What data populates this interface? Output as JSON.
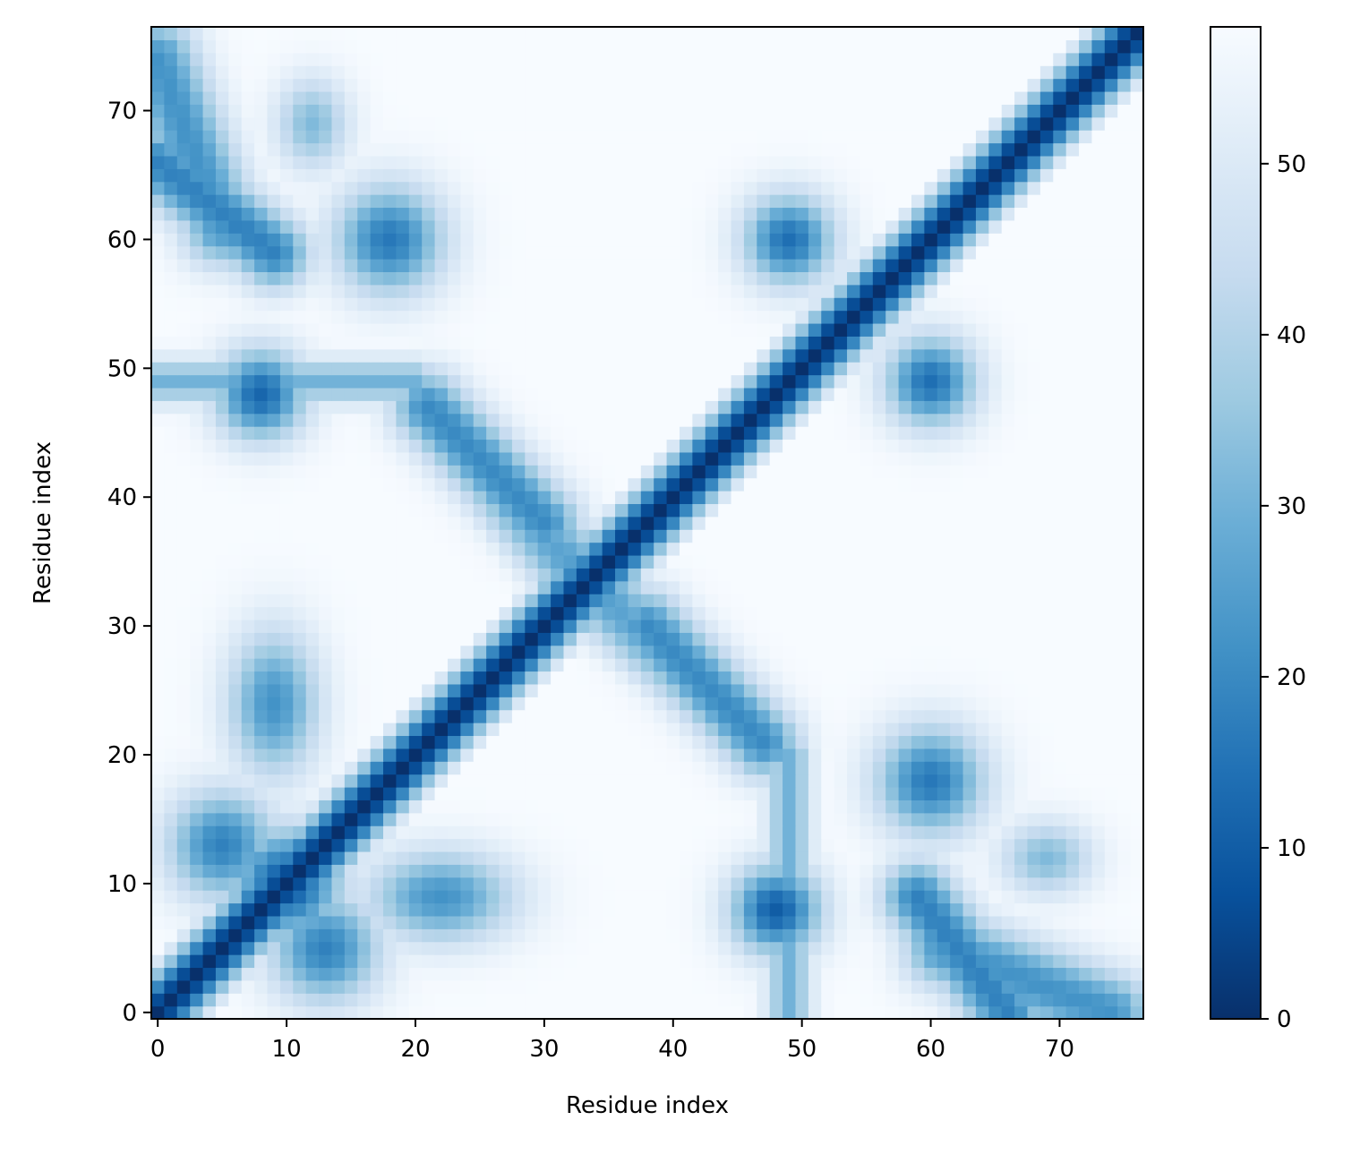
{
  "chart_data": {
    "type": "heatmap",
    "title": "",
    "xlabel": "Residue index",
    "ylabel": "Residue index",
    "n": 77,
    "xlim": [
      -0.5,
      76.5
    ],
    "ylim": [
      -0.5,
      76.5
    ],
    "x_ticks": [
      0,
      10,
      20,
      30,
      40,
      50,
      60,
      70
    ],
    "y_ticks": [
      0,
      10,
      20,
      30,
      40,
      50,
      60,
      70
    ],
    "colormap": "Blues_r",
    "colormap_stops": [
      "#08306b",
      "#08519c",
      "#2171b5",
      "#4292c6",
      "#6baed6",
      "#9ecae1",
      "#c6dbef",
      "#deebf7",
      "#f7fbff"
    ],
    "colorbar": {
      "range": [
        0,
        58
      ],
      "ticks": [
        0,
        10,
        20,
        30,
        40,
        50
      ]
    },
    "value_model": {
      "background": 58,
      "diagonal_width": 2.6,
      "anti_diagonal": {
        "center": 33.5,
        "level": 24,
        "width": 2.2,
        "extent": 12
      },
      "features": [
        {
          "x": 10,
          "y": 10,
          "value": 8,
          "sx": 3.0,
          "sy": 3.0
        },
        {
          "x": 5,
          "y": 13,
          "value": 18,
          "sx": 3.0,
          "sy": 3.0
        },
        {
          "x": 9,
          "y": 24,
          "value": 22,
          "sx": 2.5,
          "sy": 4.0
        },
        {
          "x": 22,
          "y": 9,
          "value": 22,
          "sx": 4.0,
          "sy": 2.5
        },
        {
          "x": 13,
          "y": 5,
          "value": 18,
          "sx": 3.0,
          "sy": 3.0
        },
        {
          "x": 48,
          "y": 8,
          "value": 10,
          "sx": 2.5,
          "sy": 2.5
        },
        {
          "x": 60,
          "y": 18,
          "value": 16,
          "sx": 3.0,
          "sy": 3.0
        },
        {
          "x": 69,
          "y": 12,
          "value": 32,
          "sx": 2.5,
          "sy": 2.0
        },
        {
          "x": 8,
          "y": 48,
          "value": 12,
          "sx": 2.5,
          "sy": 2.5
        },
        {
          "x": 18,
          "y": 60,
          "value": 16,
          "sx": 3.0,
          "sy": 3.0
        },
        {
          "x": 12,
          "y": 69,
          "value": 32,
          "sx": 2.0,
          "sy": 2.5
        },
        {
          "x": 49,
          "y": 60,
          "value": 14,
          "sx": 2.5,
          "sy": 2.5
        },
        {
          "x": 60,
          "y": 49,
          "value": 14,
          "sx": 2.5,
          "sy": 2.5
        }
      ],
      "bands": [
        {
          "x0": 0,
          "y0": 66,
          "x1": 9,
          "y1": 59,
          "value": 18,
          "width": 2.0
        },
        {
          "x0": 66,
          "y0": 0,
          "x1": 59,
          "y1": 9,
          "value": 18,
          "width": 2.0
        },
        {
          "x0": 61,
          "y0": 5,
          "x1": 74,
          "y1": 0,
          "value": 22,
          "width": 2.2
        },
        {
          "x0": 5,
          "y0": 61,
          "x1": 0,
          "y1": 74,
          "value": 22,
          "width": 2.2
        },
        {
          "x0": 21,
          "y0": 47,
          "x1": 30,
          "y1": 38,
          "value": 20,
          "width": 2.0
        },
        {
          "x0": 47,
          "y0": 21,
          "x1": 38,
          "y1": 30,
          "value": 20,
          "width": 2.0
        },
        {
          "x0": 0,
          "y0": 49,
          "x1": 20,
          "y1": 49,
          "value": 30,
          "width": 1.2
        },
        {
          "x0": 49,
          "y0": 0,
          "x1": 49,
          "y1": 20,
          "value": 30,
          "width": 1.2
        }
      ]
    }
  }
}
